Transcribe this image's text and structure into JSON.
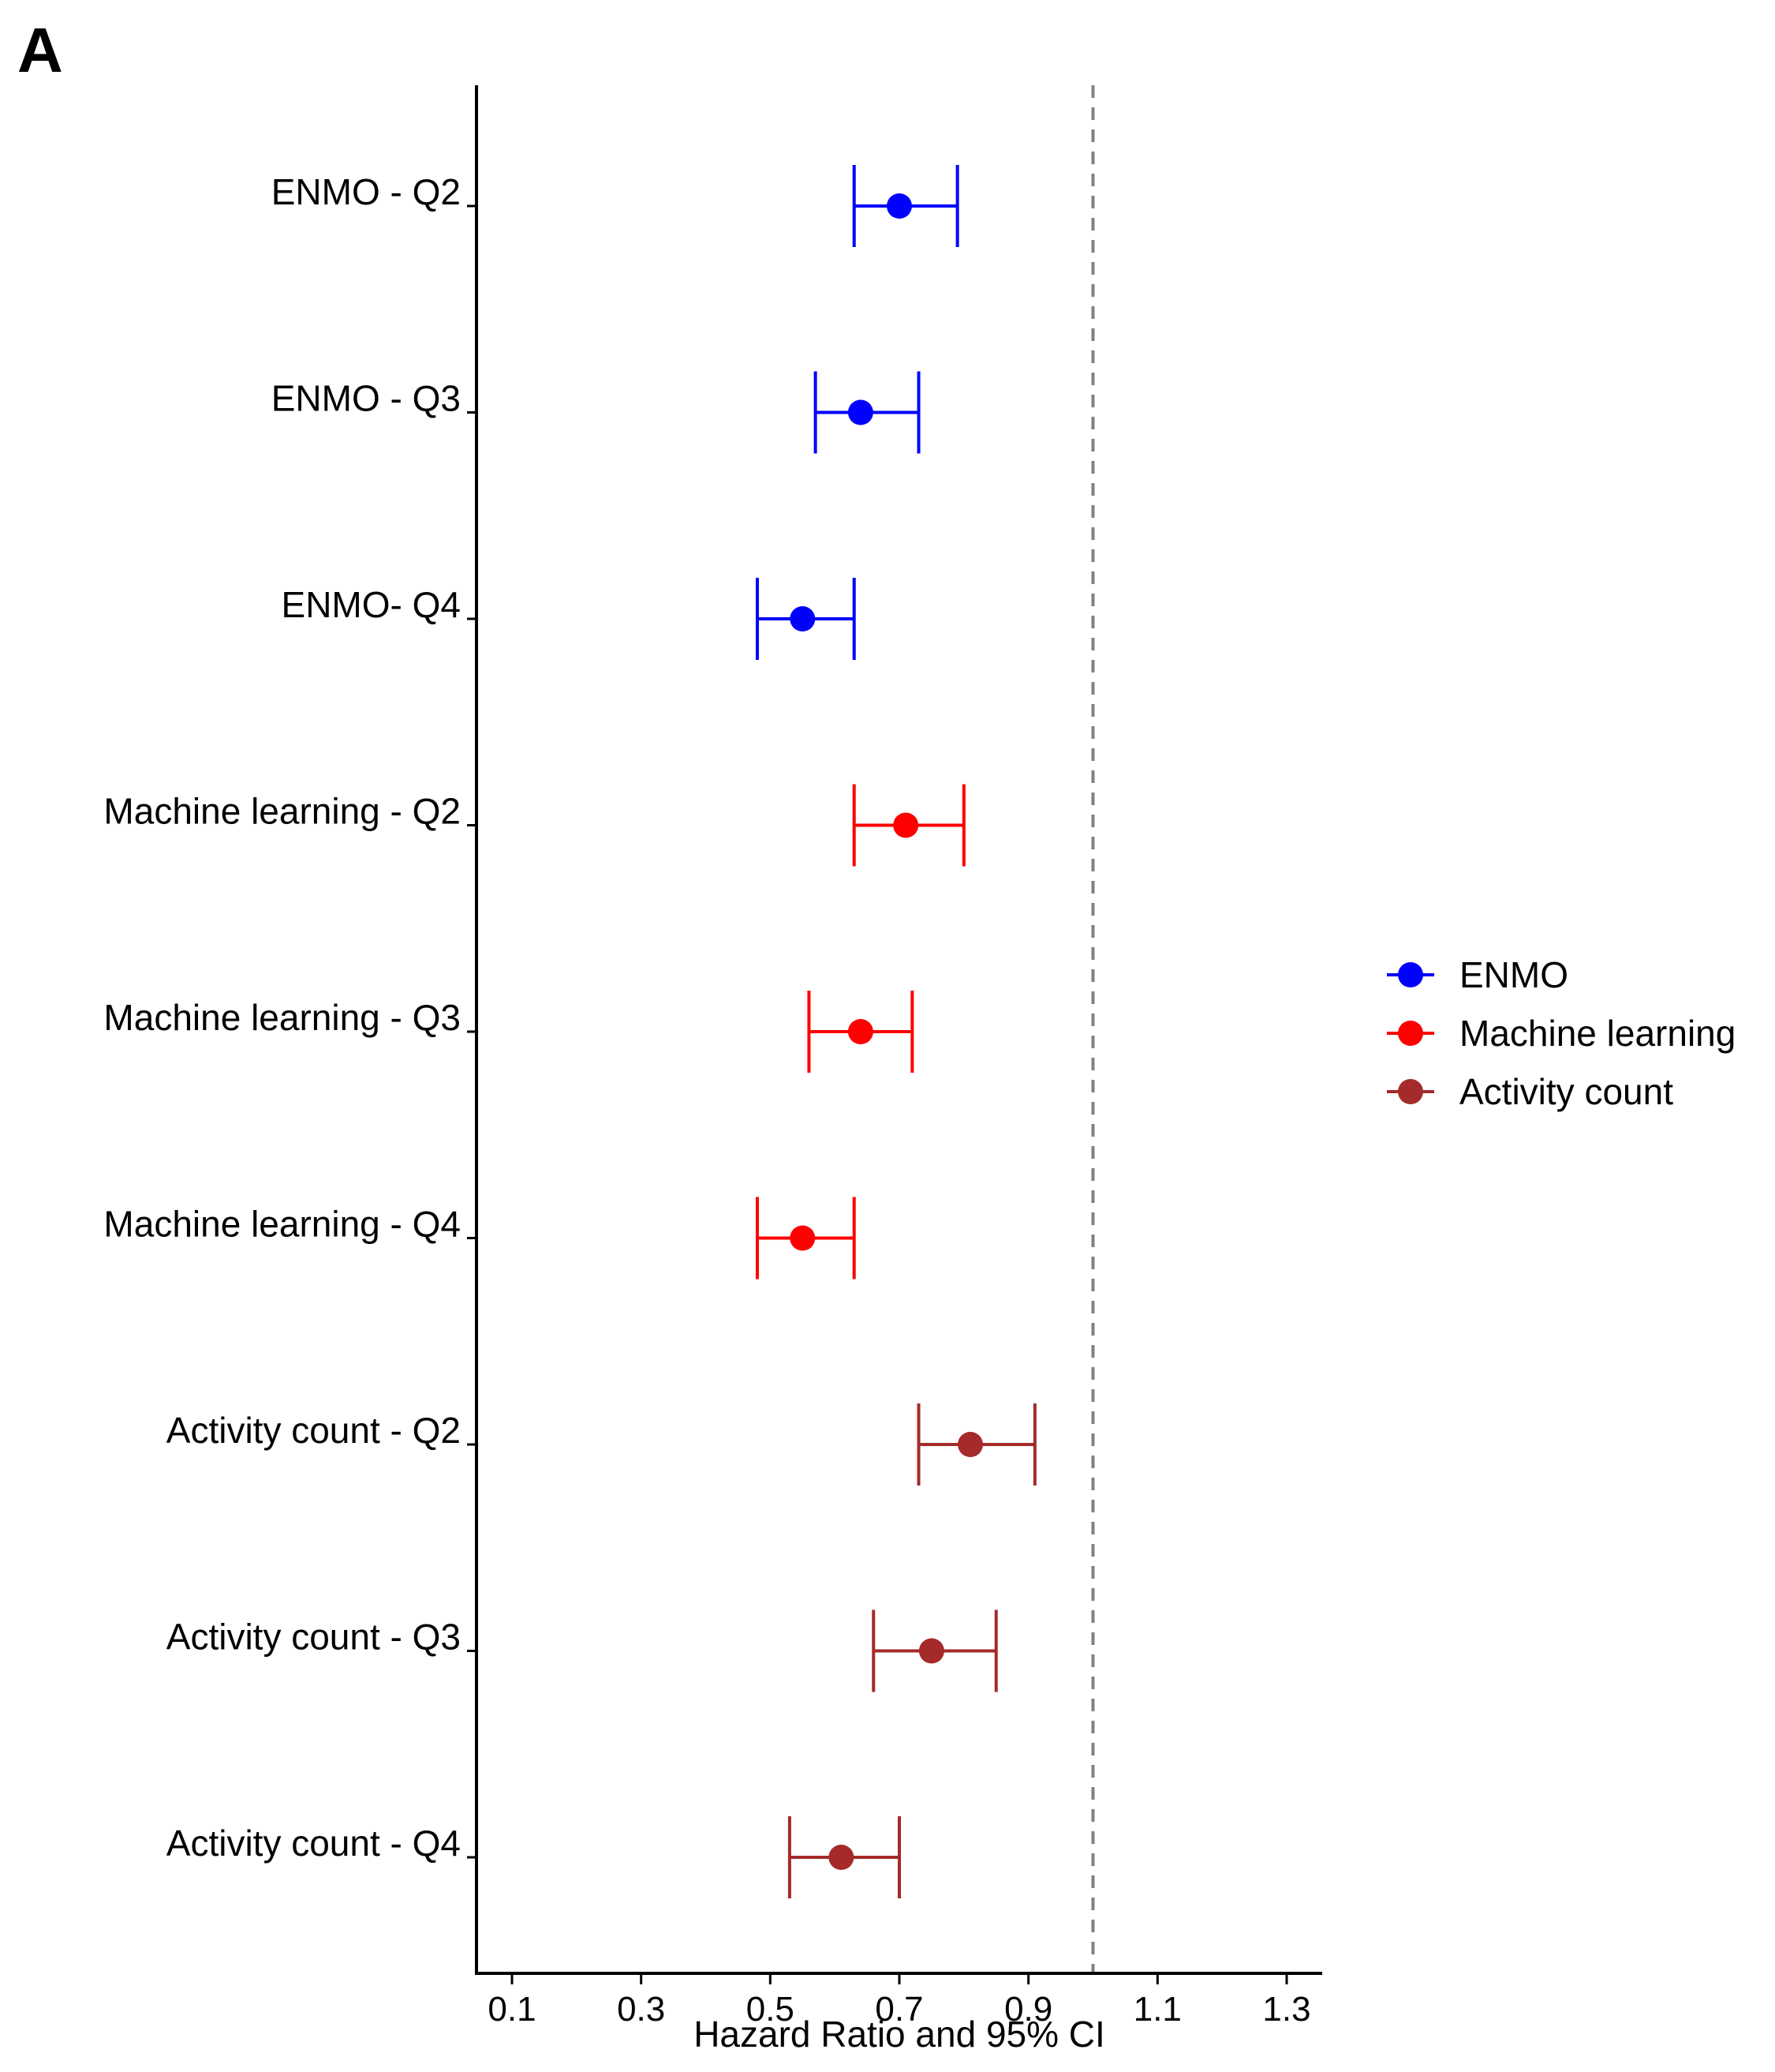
{
  "panel_label": "A",
  "chart_data": {
    "type": "forest",
    "xlabel": "Hazard Ratio and 95% CI",
    "xlim": [
      0.045,
      1.355
    ],
    "xticks": [
      0.1,
      0.3,
      0.5,
      0.7,
      0.9,
      1.1,
      1.3
    ],
    "xtick_labels": [
      "0.1",
      "0.3",
      "0.5",
      "0.7",
      "0.9",
      "1.1",
      "1.3"
    ],
    "reference_line": 1.0,
    "legend_position": "right",
    "series": [
      {
        "name": "ENMO",
        "color": "#0000ff"
      },
      {
        "name": "Machine learning",
        "color": "#ff0000"
      },
      {
        "name": "Activity count",
        "color": "#a52a2a"
      }
    ],
    "rows": [
      {
        "label": "ENMO - Q2",
        "series": "ENMO",
        "hr": 0.7,
        "lower": 0.63,
        "upper": 0.79
      },
      {
        "label": "ENMO - Q3",
        "series": "ENMO",
        "hr": 0.64,
        "lower": 0.57,
        "upper": 0.73
      },
      {
        "label": "ENMO- Q4",
        "series": "ENMO",
        "hr": 0.55,
        "lower": 0.48,
        "upper": 0.63
      },
      {
        "label": "Machine learning - Q2",
        "series": "Machine learning",
        "hr": 0.71,
        "lower": 0.63,
        "upper": 0.8
      },
      {
        "label": "Machine learning - Q3",
        "series": "Machine learning",
        "hr": 0.64,
        "lower": 0.56,
        "upper": 0.72
      },
      {
        "label": "Machine learning - Q4",
        "series": "Machine learning",
        "hr": 0.55,
        "lower": 0.48,
        "upper": 0.63
      },
      {
        "label": "Activity count - Q2",
        "series": "Activity count",
        "hr": 0.81,
        "lower": 0.73,
        "upper": 0.91
      },
      {
        "label": "Activity count - Q3",
        "series": "Activity count",
        "hr": 0.75,
        "lower": 0.66,
        "upper": 0.85
      },
      {
        "label": "Activity count - Q4",
        "series": "Activity count",
        "hr": 0.61,
        "lower": 0.53,
        "upper": 0.7
      }
    ]
  }
}
